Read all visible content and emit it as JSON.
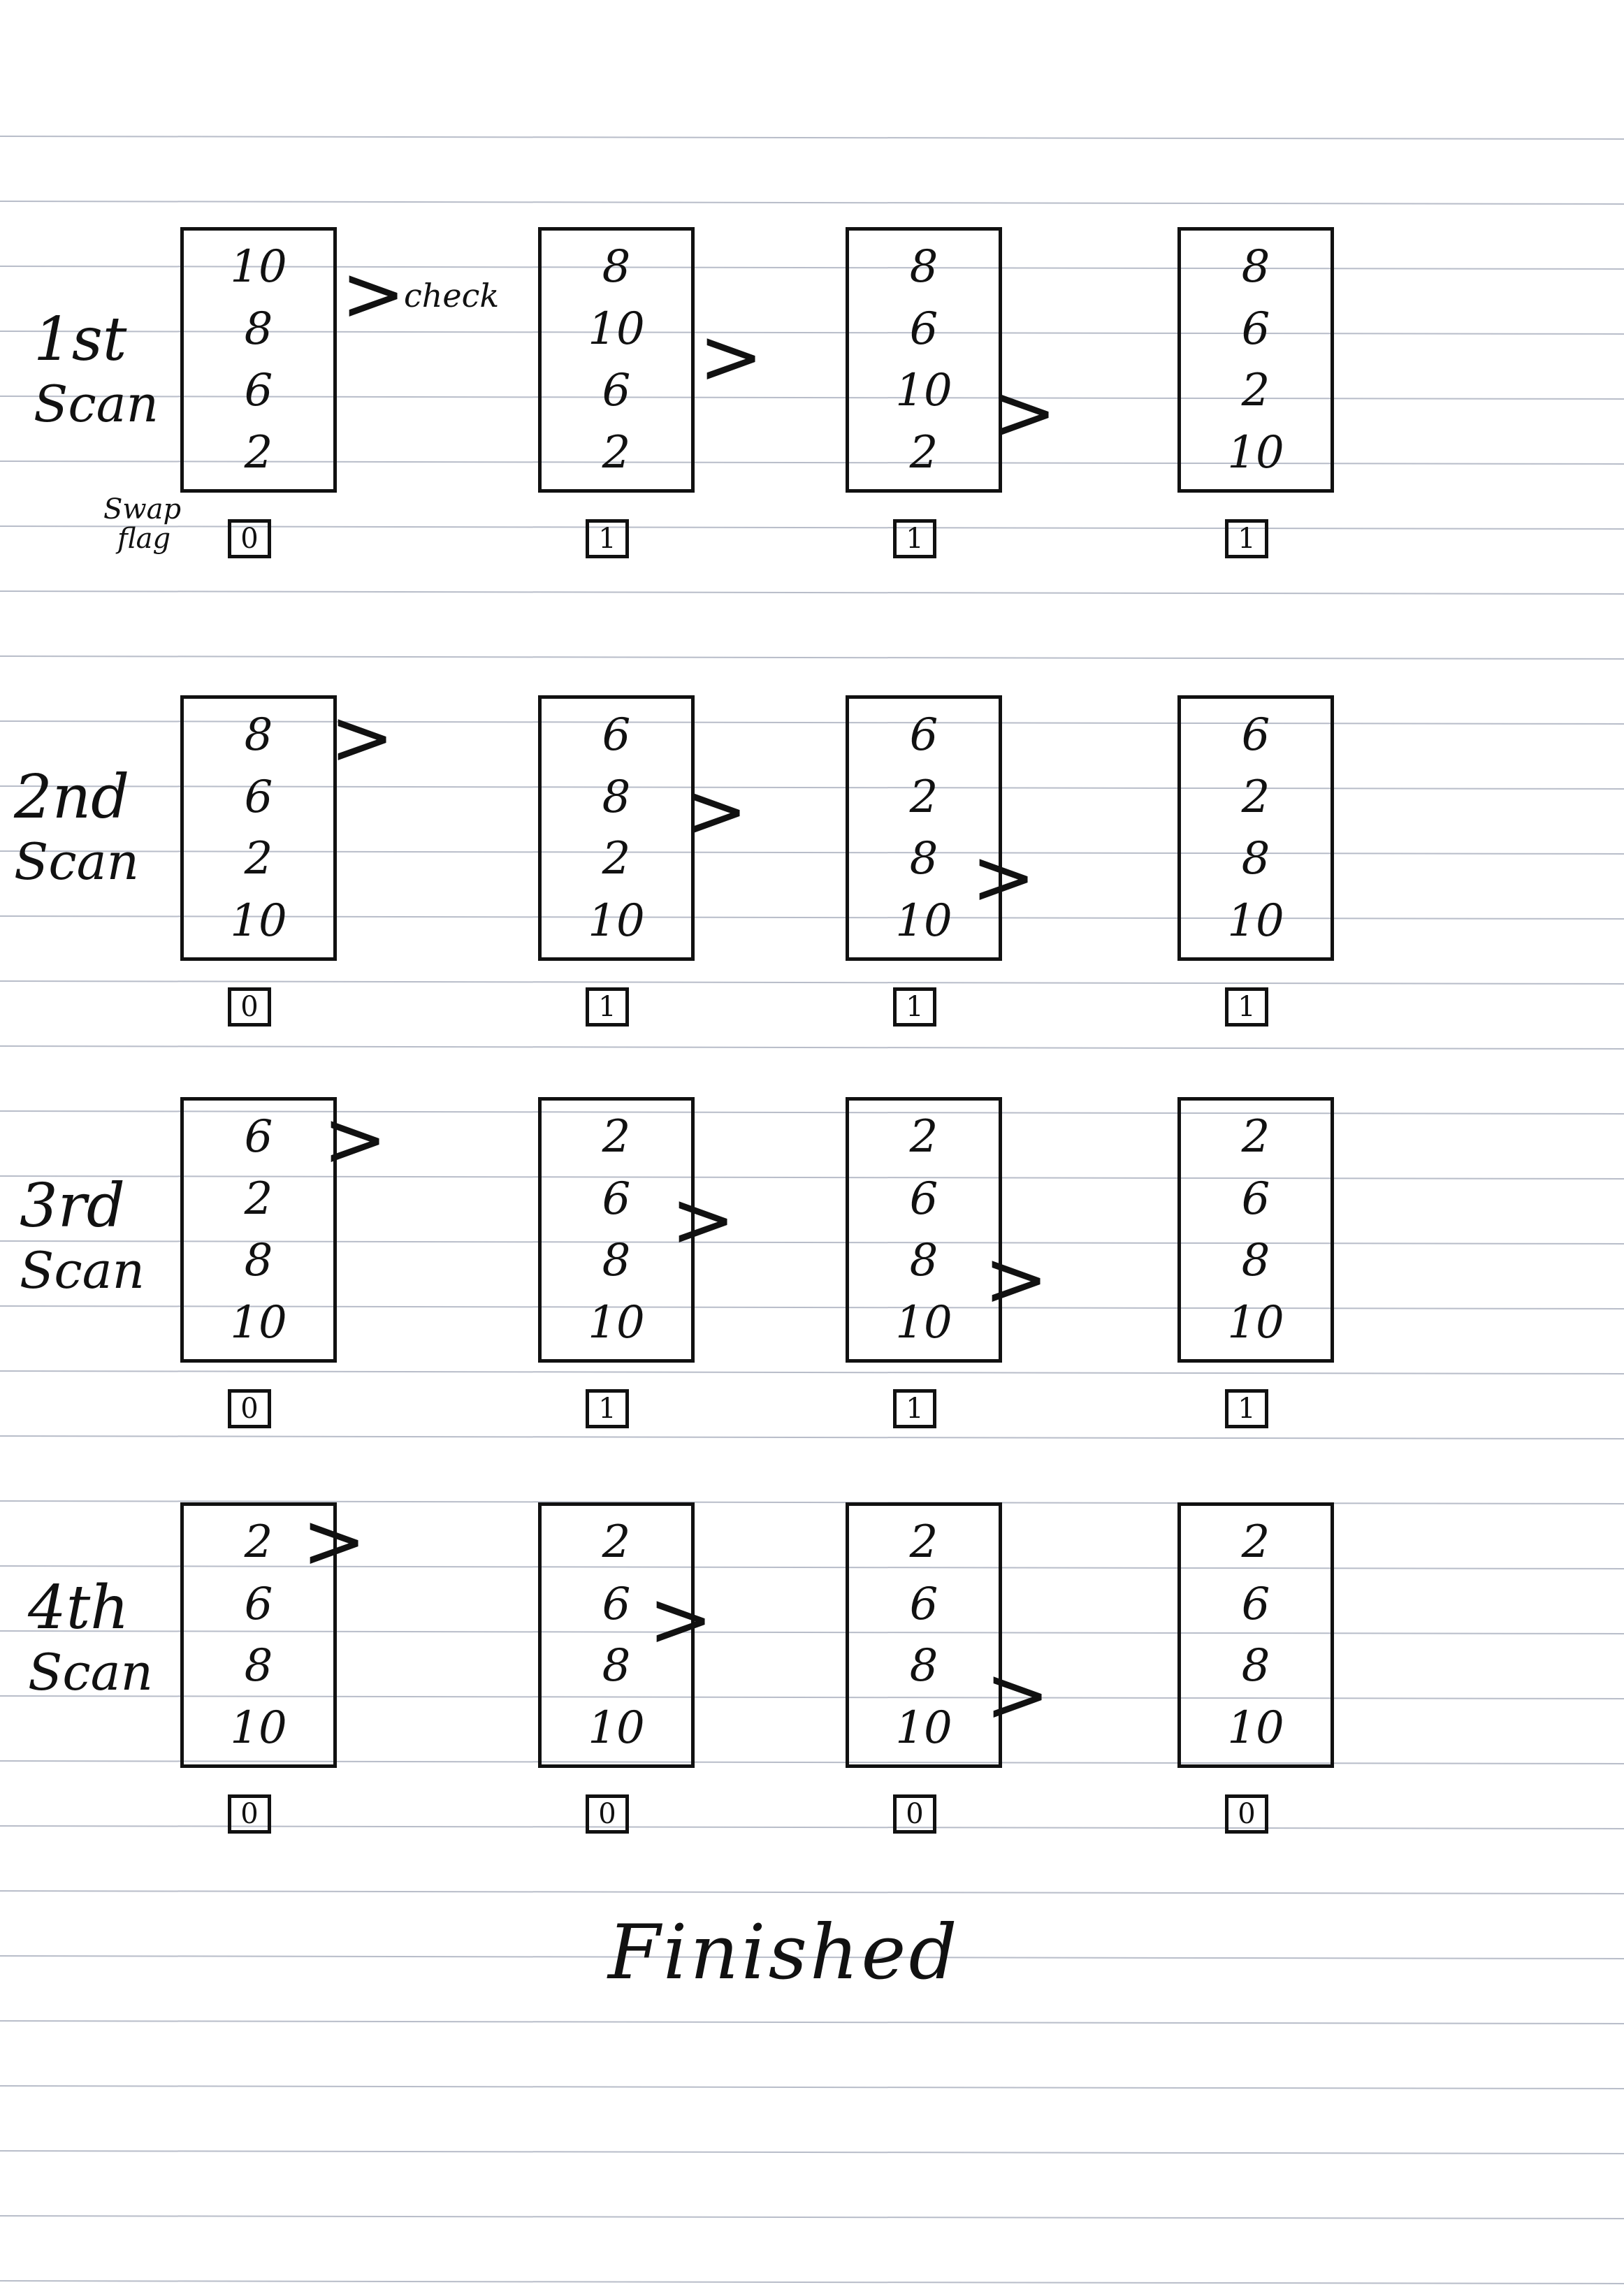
{
  "scans": [
    {
      "label_line1": "1st",
      "label_line2": "Scan",
      "steps": [
        {
          "values": [
            "10",
            "8",
            "6",
            "2"
          ],
          "swap_flag": "0"
        },
        {
          "values": [
            "8",
            "10",
            "6",
            "2"
          ],
          "swap_flag": "1"
        },
        {
          "values": [
            "8",
            "6",
            "10",
            "2"
          ],
          "swap_flag": "1"
        },
        {
          "values": [
            "8",
            "6",
            "2",
            "10"
          ],
          "swap_flag": "1"
        }
      ]
    },
    {
      "label_line1": "2nd",
      "label_line2": "Scan",
      "steps": [
        {
          "values": [
            "8",
            "6",
            "2",
            "10"
          ],
          "swap_flag": "0"
        },
        {
          "values": [
            "6",
            "8",
            "2",
            "10"
          ],
          "swap_flag": "1"
        },
        {
          "values": [
            "6",
            "2",
            "8",
            "10"
          ],
          "swap_flag": "1"
        },
        {
          "values": [
            "6",
            "2",
            "8",
            "10"
          ],
          "swap_flag": "1"
        }
      ]
    },
    {
      "label_line1": "3rd",
      "label_line2": "Scan",
      "steps": [
        {
          "values": [
            "6",
            "2",
            "8",
            "10"
          ],
          "swap_flag": "0"
        },
        {
          "values": [
            "2",
            "6",
            "8",
            "10"
          ],
          "swap_flag": "1"
        },
        {
          "values": [
            "2",
            "6",
            "8",
            "10"
          ],
          "swap_flag": "1"
        },
        {
          "values": [
            "2",
            "6",
            "8",
            "10"
          ],
          "swap_flag": "1"
        }
      ]
    },
    {
      "label_line1": "4th",
      "label_line2": "Scan",
      "steps": [
        {
          "values": [
            "2",
            "6",
            "8",
            "10"
          ],
          "swap_flag": "0"
        },
        {
          "values": [
            "2",
            "6",
            "8",
            "10"
          ],
          "swap_flag": "0"
        },
        {
          "values": [
            "2",
            "6",
            "8",
            "10"
          ],
          "swap_flag": "0"
        },
        {
          "values": [
            "2",
            "6",
            "8",
            "10"
          ],
          "swap_flag": "0"
        }
      ]
    }
  ],
  "swap_flag_label": {
    "line1": "Swap",
    "line2": "flag"
  },
  "check_label": "check",
  "compare_marker": ">",
  "finished_label": "Finished"
}
